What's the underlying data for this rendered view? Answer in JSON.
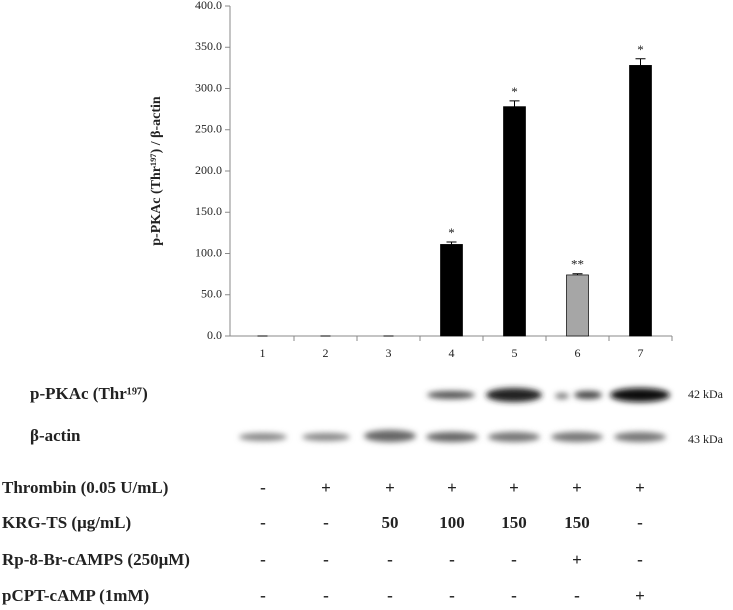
{
  "chart_data": {
    "type": "bar",
    "y_label": "p-PKAc (Thr¹⁹⁷) / β-actin",
    "categories": [
      "1",
      "2",
      "3",
      "4",
      "5",
      "6",
      "7"
    ],
    "values": [
      0,
      0,
      0,
      111,
      278,
      74,
      328
    ],
    "errors": [
      0,
      0,
      0,
      3,
      7,
      1.5,
      8
    ],
    "colors": [
      "#000000",
      "#000000",
      "#000000",
      "#000000",
      "#000000",
      "#a6a6a6",
      "#000000"
    ],
    "significance": [
      null,
      null,
      null,
      "*",
      "*",
      "**",
      "*"
    ],
    "ylim": [
      0,
      400
    ],
    "yticks": [
      {
        "value": 0,
        "label": "0.0"
      },
      {
        "value": 50,
        "label": "50.0"
      },
      {
        "value": 100,
        "label": "100.0"
      },
      {
        "value": 150,
        "label": "150.0"
      },
      {
        "value": 200,
        "label": "200.0"
      },
      {
        "value": 250,
        "label": "250.0"
      },
      {
        "value": 300,
        "label": "300.0"
      },
      {
        "value": 350,
        "label": "350.0"
      },
      {
        "value": 400,
        "label": "400.0"
      }
    ],
    "grid": false
  },
  "blot": {
    "labels": [
      "p-PKAc (Thr¹⁹⁷)",
      "β-actin"
    ],
    "sizes": [
      "42 kDa",
      "43 kDa"
    ]
  },
  "table": {
    "rows": [
      {
        "label": "Thrombin (0.05 U/mL)",
        "cells": [
          "-",
          "+",
          "+",
          "+",
          "+",
          "+",
          "+"
        ]
      },
      {
        "label": "KRG-TS (μg/mL)",
        "cells": [
          "-",
          "-",
          "50",
          "100",
          "150",
          "150",
          "-"
        ]
      },
      {
        "label": "Rp-8-Br-cAMPS (250μM)",
        "cells": [
          "-",
          "-",
          "-",
          "-",
          "-",
          "+",
          "-"
        ]
      },
      {
        "label": "pCPT-cAMP (1mM)",
        "cells": [
          "-",
          "-",
          "-",
          "-",
          "-",
          "-",
          "+"
        ]
      }
    ]
  }
}
